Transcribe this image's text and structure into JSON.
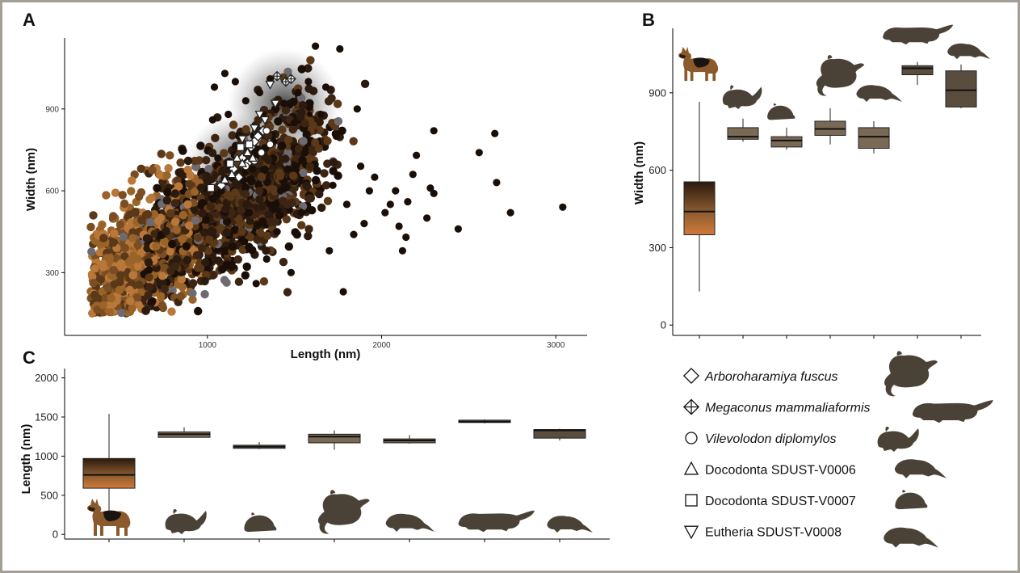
{
  "colors": {
    "silhouette": "#4a4237",
    "box_fill": "#7a6a55",
    "box_fill_dark": "#5b4d3d",
    "dog_gradient_top": "#2a1a0d",
    "dog_gradient_bottom": "#d07a3a",
    "frame": "#a49f94"
  },
  "panels": {
    "a": {
      "letter": "A"
    },
    "b": {
      "letter": "B"
    },
    "c": {
      "letter": "C"
    }
  },
  "chart_data": [
    {
      "id": "A",
      "type": "scatter",
      "xlabel": "Length (nm)",
      "ylabel": "Width (nm)",
      "xlim": [
        180,
        3180
      ],
      "ylim": [
        70,
        1160
      ],
      "xticks": [
        1000,
        2000,
        3000
      ],
      "yticks": [
        300,
        600,
        900
      ],
      "grid": false,
      "background_points": {
        "description_count": 2200,
        "x_center": 800,
        "y_center": 430,
        "colors": [
          "#1a0e08",
          "#2b1a0e",
          "#3d2513",
          "#5a3818",
          "#7a4e22",
          "#9a6328",
          "#b9773a",
          "#6b4a2b",
          "#4a3526",
          "#6e6a72"
        ]
      },
      "outer_points": [
        [
          3040,
          540
        ],
        [
          2740,
          520
        ],
        [
          2660,
          630
        ],
        [
          2650,
          810
        ],
        [
          2560,
          740
        ],
        [
          2440,
          460
        ],
        [
          2300,
          820
        ],
        [
          2280,
          610
        ],
        [
          2300,
          590
        ],
        [
          2260,
          500
        ],
        [
          2200,
          730
        ],
        [
          2180,
          660
        ],
        [
          2150,
          560
        ],
        [
          2140,
          430
        ],
        [
          2120,
          380
        ],
        [
          2100,
          470
        ],
        [
          2080,
          600
        ],
        [
          2050,
          550
        ],
        [
          2020,
          520
        ],
        [
          1960,
          650
        ],
        [
          1930,
          600
        ],
        [
          1900,
          480
        ],
        [
          1880,
          690
        ],
        [
          1860,
          900
        ],
        [
          1840,
          440
        ],
        [
          1800,
          550
        ],
        [
          1780,
          230
        ],
        [
          1760,
          1120
        ],
        [
          1740,
          800
        ],
        [
          1720,
          620
        ],
        [
          1700,
          380
        ],
        [
          1680,
          980
        ],
        [
          1650,
          880
        ],
        [
          1620,
          1130
        ],
        [
          1580,
          1000
        ],
        [
          1560,
          740
        ],
        [
          1540,
          520
        ],
        [
          1520,
          960
        ],
        [
          1500,
          850
        ],
        [
          1480,
          300
        ],
        [
          1460,
          680
        ],
        [
          1440,
          920
        ],
        [
          1420,
          600
        ],
        [
          1400,
          450
        ],
        [
          1380,
          780
        ],
        [
          1360,
          1010
        ],
        [
          1340,
          350
        ],
        [
          1320,
          880
        ],
        [
          1300,
          960
        ],
        [
          1280,
          260
        ],
        [
          1260,
          680
        ],
        [
          1240,
          520
        ],
        [
          1220,
          930
        ],
        [
          1200,
          420
        ],
        [
          1180,
          800
        ],
        [
          1160,
          1000
        ],
        [
          1140,
          320
        ],
        [
          1120,
          880
        ],
        [
          1100,
          1030
        ],
        [
          1080,
          600
        ],
        [
          1060,
          720
        ],
        [
          1040,
          980
        ],
        [
          1030,
          860
        ]
      ],
      "marker_series": [
        {
          "name": "Arboroharamiya fuscus",
          "shape": "diamond",
          "points": [
            [
              1080,
              620
            ],
            [
              1150,
              680
            ],
            [
              1200,
              720
            ],
            [
              1250,
              760
            ],
            [
              1290,
              800
            ],
            [
              1320,
              820
            ],
            [
              1180,
              650
            ],
            [
              1230,
              700
            ],
            [
              1270,
              780
            ]
          ]
        },
        {
          "name": "Megaconus mammaliaformis",
          "shape": "crossed-diamond",
          "points": [
            [
              1400,
              1020
            ],
            [
              1450,
              1000
            ],
            [
              1480,
              1010
            ]
          ]
        },
        {
          "name": "Vilevolodon diplomylos",
          "shape": "circle",
          "points": [
            [
              1310,
              740
            ],
            [
              1360,
              770
            ],
            [
              1270,
              710
            ],
            [
              1220,
              690
            ],
            [
              1340,
              820
            ]
          ]
        },
        {
          "name": "Docodonta SDUST-V0006",
          "shape": "triangle",
          "points": [
            [
              1140,
              660
            ],
            [
              1200,
              700
            ],
            [
              1170,
              720
            ],
            [
              1230,
              740
            ],
            [
              1260,
              720
            ],
            [
              1100,
              640
            ]
          ]
        },
        {
          "name": "Docodonta SDUST-V0007",
          "shape": "square",
          "points": [
            [
              1020,
              610
            ],
            [
              1130,
              700
            ],
            [
              1190,
              760
            ],
            [
              1240,
              770
            ]
          ]
        },
        {
          "name": "Eutheria SDUST-V0008",
          "shape": "triangle-down",
          "points": [
            [
              1360,
              990
            ],
            [
              1390,
              920
            ],
            [
              1270,
              830
            ],
            [
              1200,
              790
            ],
            [
              1300,
              880
            ],
            [
              1330,
              860
            ]
          ]
        }
      ]
    },
    {
      "id": "B",
      "type": "box",
      "ylabel": "Width (nm)",
      "xlabel": "",
      "ylim": [
        -40,
        1150
      ],
      "yticks": [
        0,
        300,
        600,
        900
      ],
      "grid": false,
      "boxes": [
        {
          "min": 130,
          "q1": 350,
          "median": 440,
          "q3": 555,
          "max": 865,
          "style": "dog"
        },
        {
          "min": 710,
          "q1": 720,
          "median": 730,
          "q3": 765,
          "max": 800,
          "style": "fossil"
        },
        {
          "min": 680,
          "q1": 690,
          "median": 715,
          "q3": 730,
          "max": 765,
          "style": "fossil"
        },
        {
          "min": 700,
          "q1": 735,
          "median": 760,
          "q3": 790,
          "max": 840,
          "style": "fossil"
        },
        {
          "min": 665,
          "q1": 685,
          "median": 730,
          "q3": 765,
          "max": 790,
          "style": "fossil"
        },
        {
          "min": 930,
          "q1": 970,
          "median": 995,
          "q3": 1005,
          "max": 1020,
          "style": "fossil-dark"
        },
        {
          "min": 840,
          "q1": 845,
          "median": 910,
          "q3": 985,
          "max": 1010,
          "style": "fossil-dark"
        }
      ]
    },
    {
      "id": "C",
      "type": "box",
      "ylabel": "Length (nm)",
      "xlabel": "",
      "ylim": [
        -60,
        2120
      ],
      "yticks": [
        0,
        500,
        1000,
        1500,
        2000
      ],
      "grid": false,
      "boxes": [
        {
          "min": 160,
          "q1": 590,
          "median": 760,
          "q3": 970,
          "max": 1540,
          "style": "dog"
        },
        {
          "min": 1240,
          "q1": 1240,
          "median": 1280,
          "q3": 1310,
          "max": 1370,
          "style": "fossil"
        },
        {
          "min": 1090,
          "q1": 1100,
          "median": 1120,
          "q3": 1140,
          "max": 1180,
          "style": "fossil"
        },
        {
          "min": 1080,
          "q1": 1170,
          "median": 1250,
          "q3": 1280,
          "max": 1330,
          "style": "fossil"
        },
        {
          "min": 1160,
          "q1": 1170,
          "median": 1200,
          "q3": 1220,
          "max": 1270,
          "style": "fossil"
        },
        {
          "min": 1420,
          "q1": 1430,
          "median": 1440,
          "q3": 1460,
          "max": 1470,
          "style": "fossil-dark"
        },
        {
          "min": 1200,
          "q1": 1230,
          "median": 1330,
          "q3": 1340,
          "max": 1350,
          "style": "fossil-dark"
        }
      ]
    }
  ],
  "legend": [
    {
      "shape": "diamond",
      "label": "Arboroharamiya fuscus",
      "italic": true
    },
    {
      "shape": "crossed-diamond",
      "label": "Megaconus mammaliaformis",
      "italic": true
    },
    {
      "shape": "circle",
      "label": "Vilevolodon diplomylos",
      "italic": true
    },
    {
      "shape": "triangle",
      "label": "Docodonta SDUST-V0006",
      "italic": false
    },
    {
      "shape": "square",
      "label": "Docodonta SDUST-V0007",
      "italic": false
    },
    {
      "shape": "triangle-down",
      "label": "Eutheria SDUST-V0008",
      "italic": false
    }
  ],
  "icons": {
    "dog": "german-shepherd-dog-icon",
    "glider": "gliding-mammal-silhouette-icon",
    "squirrel": "squirrel-silhouette-icon",
    "mouse": "small-mammal-silhouette-icon",
    "weasel": "long-mammal-silhouette-icon"
  }
}
